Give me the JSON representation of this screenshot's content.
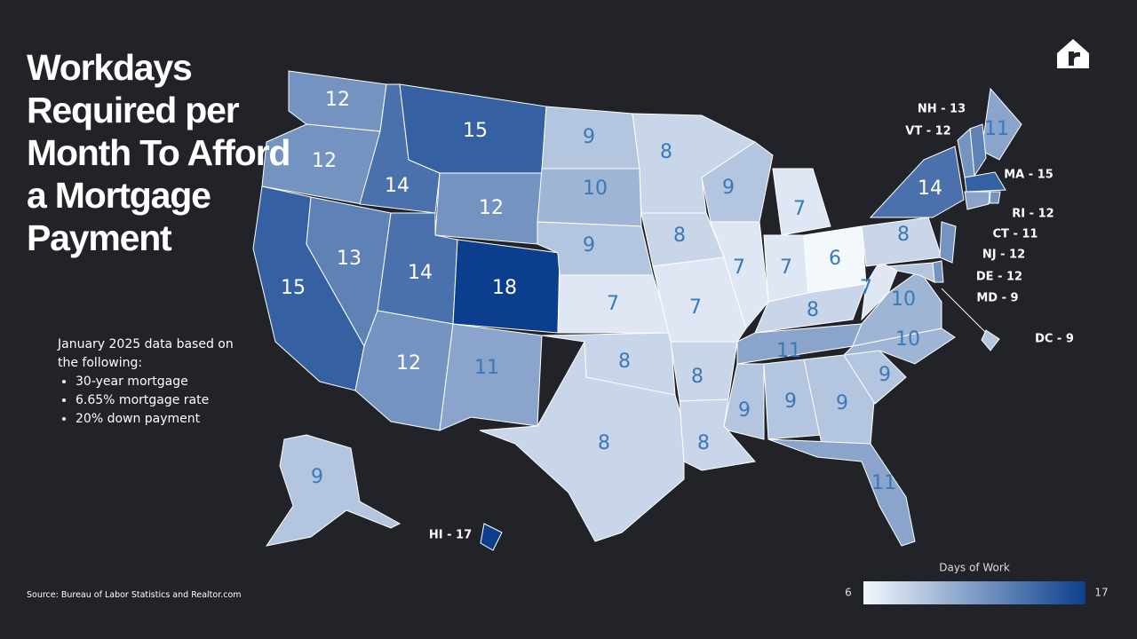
{
  "title": "Workdays Required per Month To Afford a Mortgage Payment",
  "notes": {
    "intro": "January 2025 data based on the following:",
    "bullets": [
      "30-year mortgage",
      "6.65% mortgage rate",
      "20% down payment"
    ]
  },
  "source": "Source: Bureau of Labor Statistics and Realtor.com",
  "colorbar": {
    "title": "Days of Work",
    "min": 6,
    "max": 17,
    "colors": [
      "#f3f8fd",
      "#0b3f8e"
    ]
  },
  "map_data": {
    "values": [
      12,
      12,
      15,
      13,
      14,
      15,
      12,
      14,
      18,
      12,
      11,
      9,
      10,
      9,
      7,
      8,
      8,
      8,
      8,
      7,
      8,
      8,
      9,
      7,
      7,
      7,
      6,
      8,
      11,
      9,
      9,
      9,
      11,
      9,
      10,
      10,
      7,
      8,
      14,
      11,
      9
    ],
    "callouts": [
      {
        "value": 13,
        "label": "NH - 13"
      },
      {
        "value": 12,
        "label": "VT - 12"
      },
      {
        "value": 15,
        "label": "MA - 15"
      },
      {
        "value": 12,
        "label": "RI - 12"
      },
      {
        "value": 11,
        "label": "CT - 11"
      },
      {
        "value": 12,
        "label": "NJ - 12"
      },
      {
        "value": 12,
        "label": "DE - 12"
      },
      {
        "value": 9,
        "label": "MD - 9"
      },
      {
        "value": 9,
        "label": "DC - 9"
      },
      {
        "value": 17,
        "label": "HI - 17"
      }
    ]
  }
}
